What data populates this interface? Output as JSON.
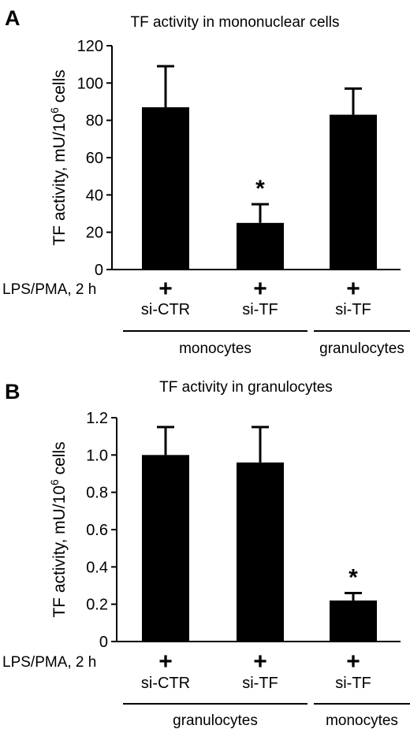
{
  "chart_data": [
    {
      "panel": "A",
      "type": "bar",
      "title": "TF activity in mononuclear cells",
      "ylabel": "TF activity, mU/10",
      "ylabel_sup": "6",
      "ylabel_tail": " cells",
      "ylim": [
        0,
        120
      ],
      "yticks": [
        "0",
        "20",
        "40",
        "60",
        "80",
        "100",
        "120"
      ],
      "row_label": "LPS/PMA, 2 h",
      "plus": [
        "+",
        "+",
        "+"
      ],
      "categories": [
        "si-CTR",
        "si-TF",
        "si-TF"
      ],
      "values": [
        87,
        25,
        83
      ],
      "errors": [
        22,
        10,
        14
      ],
      "significance": [
        "",
        "*",
        ""
      ],
      "groups": [
        {
          "label": "monocytes",
          "span": [
            0,
            1
          ]
        },
        {
          "label": "granulocytes",
          "span": [
            2,
            2
          ]
        }
      ]
    },
    {
      "panel": "B",
      "type": "bar",
      "title": "TF activity in granulocytes",
      "ylabel": "TF activity, mU/10",
      "ylabel_sup": "6",
      "ylabel_tail": " cells",
      "ylim": [
        0,
        1.2
      ],
      "yticks": [
        "0",
        "0.2",
        "0.4",
        "0.6",
        "0.8",
        "1.0",
        "1.2"
      ],
      "row_label": "LPS/PMA, 2 h",
      "plus": [
        "+",
        "+",
        "+"
      ],
      "categories": [
        "si-CTR",
        "si-TF",
        "si-TF"
      ],
      "values": [
        1.0,
        0.96,
        0.22
      ],
      "errors": [
        0.15,
        0.19,
        0.04
      ],
      "significance": [
        "",
        "",
        "*"
      ],
      "groups": [
        {
          "label": "granulocytes",
          "span": [
            0,
            1
          ]
        },
        {
          "label": "monocytes",
          "span": [
            2,
            2
          ]
        }
      ]
    }
  ]
}
